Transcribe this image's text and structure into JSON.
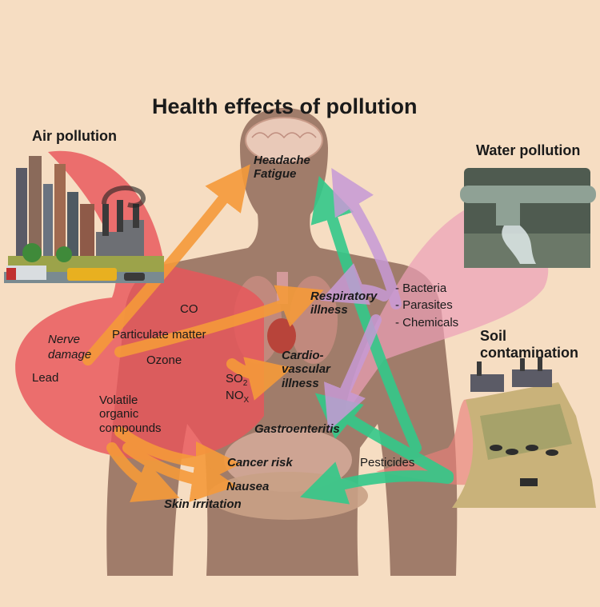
{
  "title": "Health effects of pollution",
  "sources": {
    "air": "Air pollution",
    "water": "Water pollution",
    "soil_line1": "Soil",
    "soil_line2": "contamination"
  },
  "air_pollutants": {
    "co": "CO",
    "particulate": "Particulate matter",
    "ozone": "Ozone",
    "lead": "Lead",
    "nerve_line1": "Nerve",
    "nerve_line2": "damage",
    "so2_base": "SO",
    "so2_sub": "2",
    "nox_base": "NO",
    "nox_sub": "X",
    "voc_line1": "Volatile",
    "voc_line2": "organic",
    "voc_line3": "compounds"
  },
  "water_pollutants": {
    "bacteria": "- Bacteria",
    "parasites": "- Parasites",
    "chemicals": "- Chemicals"
  },
  "soil_pollutants": {
    "pesticides": "Pesticides"
  },
  "effects": {
    "headache": "Headache",
    "fatigue": "Fatigue",
    "respiratory_line1": "Respiratory",
    "respiratory_line2": "illness",
    "cardio_line1": "Cardio-",
    "cardio_line2": "vascular",
    "cardio_line3": "illness",
    "gastro": "Gastroenteritis",
    "cancer": "Cancer risk",
    "nausea": "Nausea",
    "skin": "Skin irritation"
  },
  "colors": {
    "background": "#f6ddc2",
    "body": "#a07c6a",
    "air_arrow": "#e8565a",
    "orange_arrow": "#f59a3a",
    "green_arrow": "#33c98a",
    "purple_arrow": "#c79ad6",
    "water_arrow": "#eda0b8",
    "soil_arrow": "#e8807a"
  }
}
